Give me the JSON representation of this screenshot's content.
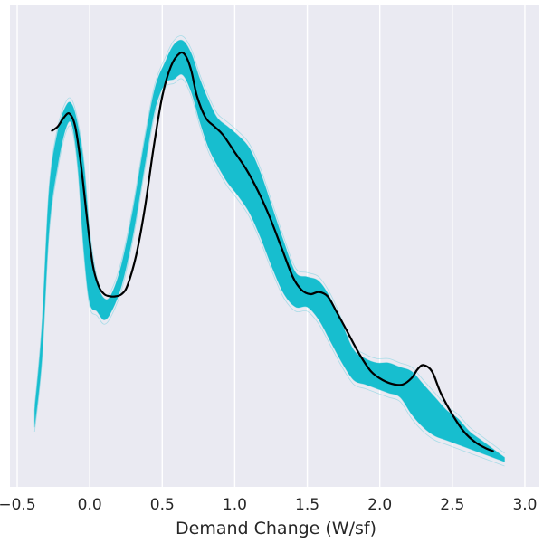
{
  "chart_data": {
    "type": "line",
    "title": "",
    "xlabel": "Demand Change (W/sf)",
    "ylabel": "",
    "xlim": [
      -0.55,
      3.1
    ],
    "ylim": [
      0.0,
      1.0
    ],
    "xticks": [
      -0.5,
      0.0,
      0.5,
      1.0,
      1.5,
      2.0,
      2.5,
      3.0
    ],
    "xtick_labels": [
      "−0.5",
      "0.0",
      "0.5",
      "1.0",
      "1.5",
      "2.0",
      "2.5",
      "3.0"
    ],
    "grid": "vertical",
    "background_color": "#eaeaf2",
    "series": [
      {
        "role": "bootstrap-band",
        "color": "#17becf",
        "x": [
          -0.38,
          -0.33,
          -0.28,
          -0.22,
          -0.16,
          -0.12,
          -0.08,
          -0.04,
          0.0,
          0.05,
          0.1,
          0.15,
          0.22,
          0.3,
          0.38,
          0.45,
          0.52,
          0.58,
          0.64,
          0.7,
          0.76,
          0.82,
          0.88,
          0.95,
          1.02,
          1.1,
          1.18,
          1.26,
          1.34,
          1.42,
          1.5,
          1.58,
          1.66,
          1.74,
          1.82,
          1.9,
          1.98,
          2.06,
          2.14,
          2.22,
          2.3,
          2.38,
          2.46,
          2.54,
          2.62,
          2.7,
          2.78,
          2.86
        ],
        "upper": [
          0.13,
          0.32,
          0.64,
          0.78,
          0.84,
          0.84,
          0.79,
          0.7,
          0.54,
          0.43,
          0.39,
          0.4,
          0.47,
          0.6,
          0.76,
          0.88,
          0.94,
          0.98,
          0.99,
          0.96,
          0.9,
          0.85,
          0.81,
          0.79,
          0.77,
          0.74,
          0.68,
          0.6,
          0.52,
          0.45,
          0.44,
          0.43,
          0.39,
          0.33,
          0.27,
          0.25,
          0.24,
          0.24,
          0.23,
          0.22,
          0.19,
          0.16,
          0.13,
          0.11,
          0.08,
          0.06,
          0.04,
          0.02
        ],
        "lower": [
          0.09,
          0.25,
          0.55,
          0.7,
          0.79,
          0.79,
          0.69,
          0.5,
          0.38,
          0.36,
          0.34,
          0.36,
          0.42,
          0.54,
          0.7,
          0.83,
          0.89,
          0.9,
          0.91,
          0.87,
          0.8,
          0.74,
          0.7,
          0.66,
          0.63,
          0.59,
          0.53,
          0.46,
          0.4,
          0.37,
          0.37,
          0.34,
          0.29,
          0.24,
          0.2,
          0.19,
          0.18,
          0.17,
          0.16,
          0.12,
          0.09,
          0.07,
          0.06,
          0.05,
          0.04,
          0.03,
          0.02,
          0.01
        ]
      },
      {
        "role": "estimate",
        "color": "#000000",
        "x": [
          -0.26,
          -0.22,
          -0.18,
          -0.14,
          -0.1,
          -0.06,
          -0.02,
          0.02,
          0.06,
          0.1,
          0.14,
          0.18,
          0.22,
          0.26,
          0.32,
          0.38,
          0.44,
          0.5,
          0.56,
          0.62,
          0.66,
          0.7,
          0.74,
          0.8,
          0.86,
          0.92,
          1.0,
          1.08,
          1.16,
          1.24,
          1.32,
          1.4,
          1.46,
          1.52,
          1.58,
          1.64,
          1.7,
          1.78,
          1.86,
          1.94,
          2.02,
          2.1,
          2.16,
          2.22,
          2.26,
          2.3,
          2.36,
          2.42,
          2.5,
          2.58,
          2.66,
          2.74,
          2.78
        ],
        "y": [
          0.78,
          0.79,
          0.81,
          0.82,
          0.79,
          0.7,
          0.58,
          0.47,
          0.42,
          0.4,
          0.395,
          0.395,
          0.4,
          0.42,
          0.49,
          0.6,
          0.74,
          0.86,
          0.93,
          0.96,
          0.955,
          0.92,
          0.86,
          0.81,
          0.79,
          0.77,
          0.73,
          0.69,
          0.64,
          0.58,
          0.51,
          0.44,
          0.41,
          0.4,
          0.405,
          0.395,
          0.36,
          0.31,
          0.26,
          0.22,
          0.2,
          0.19,
          0.19,
          0.205,
          0.225,
          0.235,
          0.22,
          0.17,
          0.12,
          0.08,
          0.055,
          0.04,
          0.035
        ]
      }
    ]
  }
}
